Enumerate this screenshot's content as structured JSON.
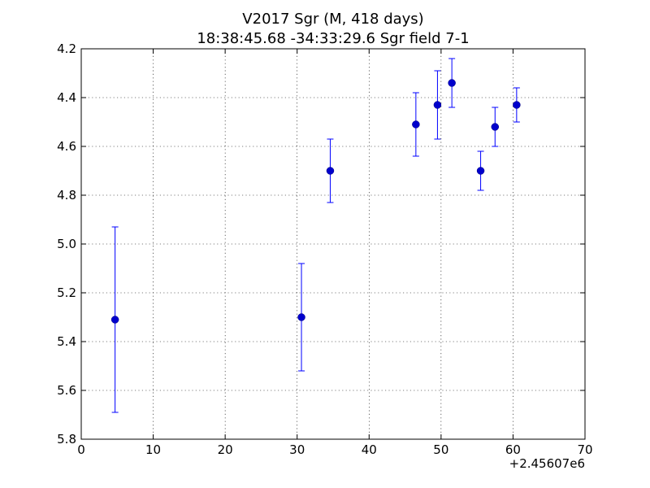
{
  "chart_data": {
    "type": "scatter",
    "title_line1": "V2017 Sgr  (M, 418 days)",
    "title_line2": "18:38:45.68 -34:33:29.6 Sgr field 7-1",
    "xlabel": "",
    "ylabel": "",
    "x_offset_label": "+2.45607e6",
    "xlim": [
      0,
      70
    ],
    "ylim": [
      5.8,
      4.2
    ],
    "y_inverted": true,
    "grid": true,
    "x_ticks": [
      0,
      10,
      20,
      30,
      40,
      50,
      60,
      70
    ],
    "x_tick_labels": [
      "0",
      "10",
      "20",
      "30",
      "40",
      "50",
      "60",
      "70"
    ],
    "y_ticks": [
      4.2,
      4.4,
      4.6,
      4.8,
      5.0,
      5.2,
      5.4,
      5.6,
      5.8
    ],
    "y_tick_labels": [
      "4.2",
      "4.4",
      "4.6",
      "4.8",
      "5.0",
      "5.2",
      "5.4",
      "5.6",
      "5.8"
    ],
    "marker_color": "#0000cc",
    "errorbar_color": "#0000ff",
    "points": [
      {
        "x": 4.7,
        "y": 5.31,
        "err": 0.38
      },
      {
        "x": 30.6,
        "y": 5.3,
        "err": 0.22
      },
      {
        "x": 34.6,
        "y": 4.7,
        "err": 0.13
      },
      {
        "x": 46.5,
        "y": 4.51,
        "err": 0.13
      },
      {
        "x": 49.5,
        "y": 4.43,
        "err": 0.14
      },
      {
        "x": 51.5,
        "y": 4.34,
        "err": 0.1
      },
      {
        "x": 55.5,
        "y": 4.7,
        "err": 0.08
      },
      {
        "x": 57.5,
        "y": 4.52,
        "err": 0.08
      },
      {
        "x": 60.5,
        "y": 4.43,
        "err": 0.07
      }
    ]
  }
}
